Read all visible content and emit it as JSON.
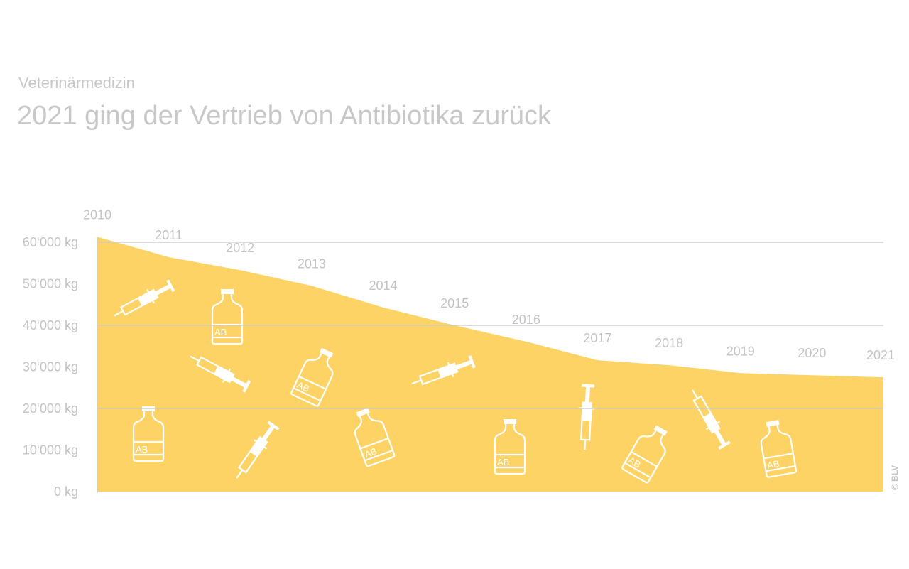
{
  "header": {
    "subtitle": "Veterinärmedizin",
    "title": "2021 ging der Vertrieb von Antibiotika zurück"
  },
  "credit": "© BLV",
  "chart_data": {
    "type": "area",
    "title": "2021 ging der Vertrieb von Antibiotika zurück",
    "subtitle": "Veterinärmedizin",
    "x": [
      "2010",
      "2011",
      "2012",
      "2013",
      "2014",
      "2015",
      "2016",
      "2017",
      "2018",
      "2019",
      "2020",
      "2021"
    ],
    "values": [
      61300,
      56400,
      53300,
      49500,
      44300,
      40000,
      36100,
      31600,
      30400,
      28500,
      28000,
      27500
    ],
    "unit": "kg",
    "ylim": [
      0,
      60000
    ],
    "yticks": [
      0,
      10000,
      20000,
      30000,
      40000,
      50000,
      60000
    ],
    "ytick_labels": [
      "0 kg",
      "10‘000 kg",
      "20‘000 kg",
      "30‘000 kg",
      "40‘000 kg",
      "50‘000 kg",
      "60‘000 kg"
    ],
    "gridlines_at": [
      20000,
      40000,
      60000
    ],
    "fill_color": "#fdd365",
    "grid_color": "#c8c8c8",
    "text_color": "#c4c4c4",
    "decorations": [
      "syringe-icon",
      "bottle-icon"
    ],
    "bottle_label": "AB"
  }
}
